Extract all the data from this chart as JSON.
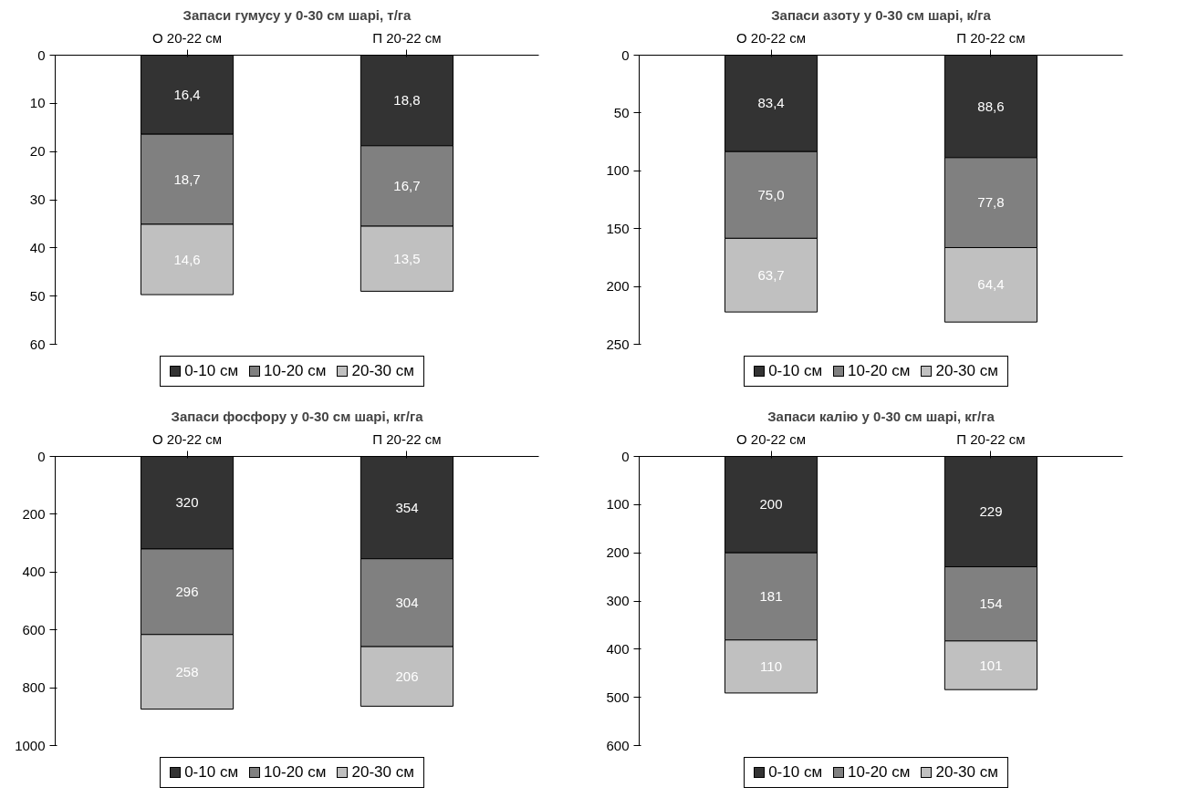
{
  "chart_data": [
    {
      "type": "bar",
      "stacked": true,
      "title": "Запаси гумусу у 0-30 см шарі, т/га",
      "categories": [
        "О 20-22 см",
        "П 20-22 см"
      ],
      "ylim": [
        60,
        0
      ],
      "yticks": [
        0,
        10,
        20,
        30,
        40,
        50,
        60
      ],
      "grid": false,
      "legend": "bottom",
      "series": [
        {
          "name": "0-10 см",
          "color": "#333333",
          "values": [
            16.4,
            18.8
          ],
          "value_labels": [
            "16,4",
            "18,8"
          ]
        },
        {
          "name": "10-20 см",
          "color": "#808080",
          "values": [
            18.7,
            16.7
          ],
          "value_labels": [
            "18,7",
            "16,7"
          ]
        },
        {
          "name": "20-30 см",
          "color": "#c0c0c0",
          "values": [
            14.6,
            13.5
          ],
          "value_labels": [
            "14,6",
            "13,5"
          ]
        }
      ]
    },
    {
      "type": "bar",
      "stacked": true,
      "title": "Запаси азоту у 0-30 см шарі, к/га",
      "categories": [
        "О 20-22 см",
        "П 20-22 см"
      ],
      "ylim": [
        250,
        0
      ],
      "yticks": [
        0,
        50,
        100,
        150,
        200,
        250
      ],
      "grid": false,
      "legend": "bottom",
      "series": [
        {
          "name": "0-10 см",
          "color": "#333333",
          "values": [
            83.4,
            88.6
          ],
          "value_labels": [
            "83,4",
            "88,6"
          ]
        },
        {
          "name": "10-20 см",
          "color": "#808080",
          "values": [
            75.0,
            77.8
          ],
          "value_labels": [
            "75,0",
            "77,8"
          ]
        },
        {
          "name": "20-30 см",
          "color": "#c0c0c0",
          "values": [
            63.7,
            64.4
          ],
          "value_labels": [
            "63,7",
            "64,4"
          ]
        }
      ]
    },
    {
      "type": "bar",
      "stacked": true,
      "title": "Запаси фосфору у 0-30 см шарі, кг/га",
      "categories": [
        "О 20-22 см",
        "П 20-22 см"
      ],
      "ylim": [
        1000,
        0
      ],
      "yticks": [
        0,
        200,
        400,
        600,
        800,
        1000
      ],
      "grid": false,
      "legend": "bottom",
      "series": [
        {
          "name": "0-10 см",
          "color": "#333333",
          "values": [
            320,
            354
          ],
          "value_labels": [
            "320",
            "354"
          ]
        },
        {
          "name": "10-20 см",
          "color": "#808080",
          "values": [
            296,
            304
          ],
          "value_labels": [
            "296",
            "304"
          ]
        },
        {
          "name": "20-30 см",
          "color": "#c0c0c0",
          "values": [
            258,
            206
          ],
          "value_labels": [
            "258",
            "206"
          ]
        }
      ]
    },
    {
      "type": "bar",
      "stacked": true,
      "title": "Запаси калію у 0-30 см шарі, кг/га",
      "categories": [
        "О 20-22 см",
        "П 20-22 см"
      ],
      "ylim": [
        600,
        0
      ],
      "yticks": [
        0,
        100,
        200,
        300,
        400,
        500,
        600
      ],
      "grid": false,
      "legend": "bottom",
      "series": [
        {
          "name": "0-10 см",
          "color": "#333333",
          "values": [
            200,
            229
          ],
          "value_labels": [
            "200",
            "229"
          ]
        },
        {
          "name": "10-20 см",
          "color": "#808080",
          "values": [
            181,
            154
          ],
          "value_labels": [
            "181",
            "154"
          ]
        },
        {
          "name": "20-30 см",
          "color": "#c0c0c0",
          "values": [
            110,
            101
          ],
          "value_labels": [
            "110",
            "101"
          ]
        }
      ]
    }
  ]
}
